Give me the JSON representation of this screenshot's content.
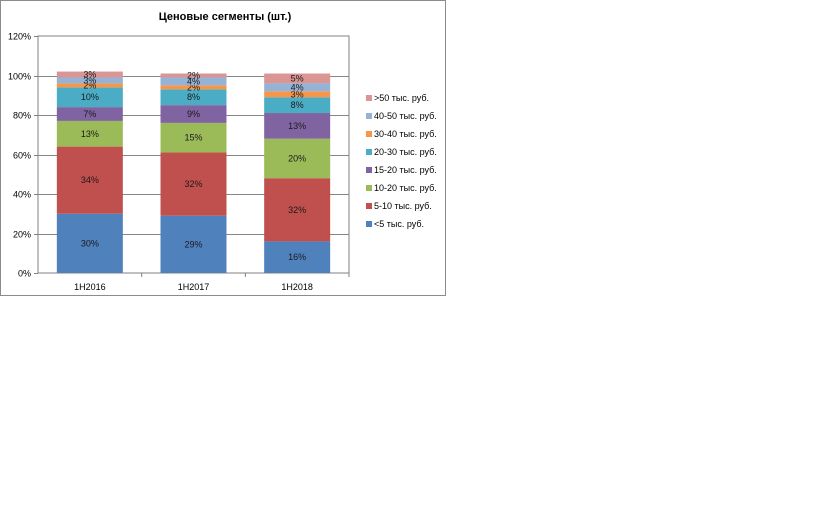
{
  "chart_data": {
    "type": "bar",
    "stacked": true,
    "title": "Ценовые сегменты (шт.)",
    "xlabel": "",
    "ylabel": "",
    "categories": [
      "1H2016",
      "1H2017",
      "1H2018"
    ],
    "ylim": [
      0,
      120
    ],
    "yticks": [
      "0%",
      "20%",
      "40%",
      "60%",
      "80%",
      "100%",
      "120%"
    ],
    "grid": true,
    "legend_position": "right",
    "series": [
      {
        "name": "<5 тыс. руб.",
        "color": "#4f81bd",
        "values": [
          30,
          29,
          16
        ],
        "labels": [
          "30%",
          "29%",
          "16%"
        ]
      },
      {
        "name": "5-10 тыс. руб.",
        "color": "#c0504d",
        "values": [
          34,
          32,
          32
        ],
        "labels": [
          "34%",
          "32%",
          "32%"
        ]
      },
      {
        "name": "10-20 тыс. руб.",
        "color": "#9bbb59",
        "values": [
          13,
          15,
          20
        ],
        "labels": [
          "13%",
          "15%",
          "20%"
        ]
      },
      {
        "name": "15-20 тыс. руб.",
        "color": "#8064a2",
        "values": [
          7,
          9,
          13
        ],
        "labels": [
          "7%",
          "9%",
          "13%"
        ]
      },
      {
        "name": "20-30 тыс. руб.",
        "color": "#4bacc6",
        "values": [
          10,
          8,
          8
        ],
        "labels": [
          "10%",
          "8%",
          "8%"
        ]
      },
      {
        "name": "30-40 тыс. руб.",
        "color": "#f79646",
        "values": [
          2,
          2,
          3
        ],
        "labels": [
          "2%",
          "2%",
          "3%"
        ]
      },
      {
        "name": "40-50 тыс. руб.",
        "color": "#95b3d7",
        "values": [
          3,
          4,
          4
        ],
        "labels": [
          "3%",
          "4%",
          "4%"
        ]
      },
      {
        "name": ">50 тыс. руб.",
        "color": "#d99694",
        "values": [
          3,
          2,
          5
        ],
        "labels": [
          "3%",
          "2%",
          "5%"
        ]
      }
    ]
  }
}
